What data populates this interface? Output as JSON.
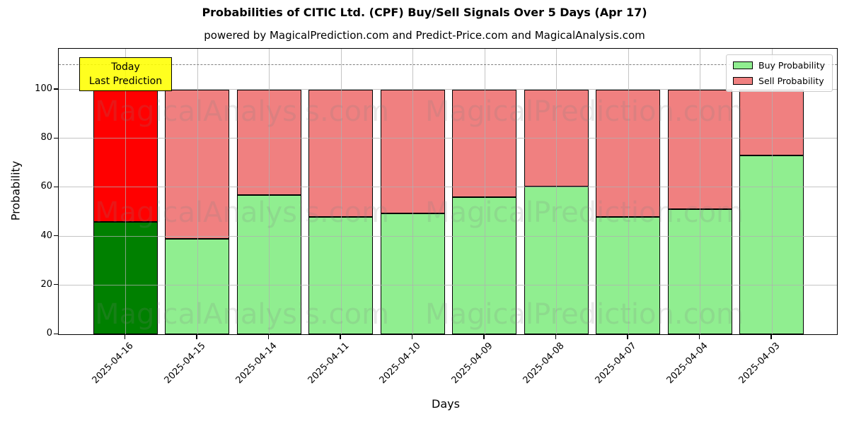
{
  "title": "Probabilities of CITIC Ltd. (CPF) Buy/Sell Signals Over 5 Days (Apr 17)",
  "subtitle": "powered by MagicalPrediction.com and Predict-Price.com and MagicalAnalysis.com",
  "annotation": {
    "line1": "Today",
    "line2": "Last Prediction",
    "bg_color": "#ffff00"
  },
  "legend": {
    "items": [
      {
        "label": "Buy Probability",
        "color": "#90ee90"
      },
      {
        "label": "Sell Probability",
        "color": "#f08080"
      }
    ]
  },
  "watermarks": {
    "left_text": "MagicalAnalysis.com",
    "right_text": "MagicalPrediction.com"
  },
  "chart_data": {
    "type": "bar",
    "stacked": true,
    "title": "Probabilities of CITIC Ltd. (CPF) Buy/Sell Signals Over 5 Days (Apr 17)",
    "xlabel": "Days",
    "ylabel": "Probability",
    "categories": [
      "2025-04-16",
      "2025-04-15",
      "2025-04-14",
      "2025-04-11",
      "2025-04-10",
      "2025-04-09",
      "2025-04-08",
      "2025-04-07",
      "2025-04-04",
      "2025-04-03"
    ],
    "series": [
      {
        "name": "Buy Probability",
        "color": "#90ee90",
        "values": [
          46,
          39,
          57,
          48,
          49.5,
          56,
          60.5,
          48,
          51,
          73
        ]
      },
      {
        "name": "Sell Probability",
        "color": "#f08080",
        "values": [
          54,
          61,
          43,
          52,
          50.5,
          44,
          39.5,
          52,
          49,
          27
        ]
      }
    ],
    "today_index": 0,
    "today_colors": {
      "buy": "#008000",
      "sell": "#ff0000"
    },
    "edge_color": "#000000",
    "grid": true,
    "grid_color": "#b0b0b0",
    "ylim": [
      0,
      116.7
    ],
    "yticks": [
      0,
      20,
      40,
      60,
      80,
      100
    ],
    "dashed_line_y": 110,
    "dashed_line_color": "#7f7f7f",
    "legend_position": "upper right"
  }
}
